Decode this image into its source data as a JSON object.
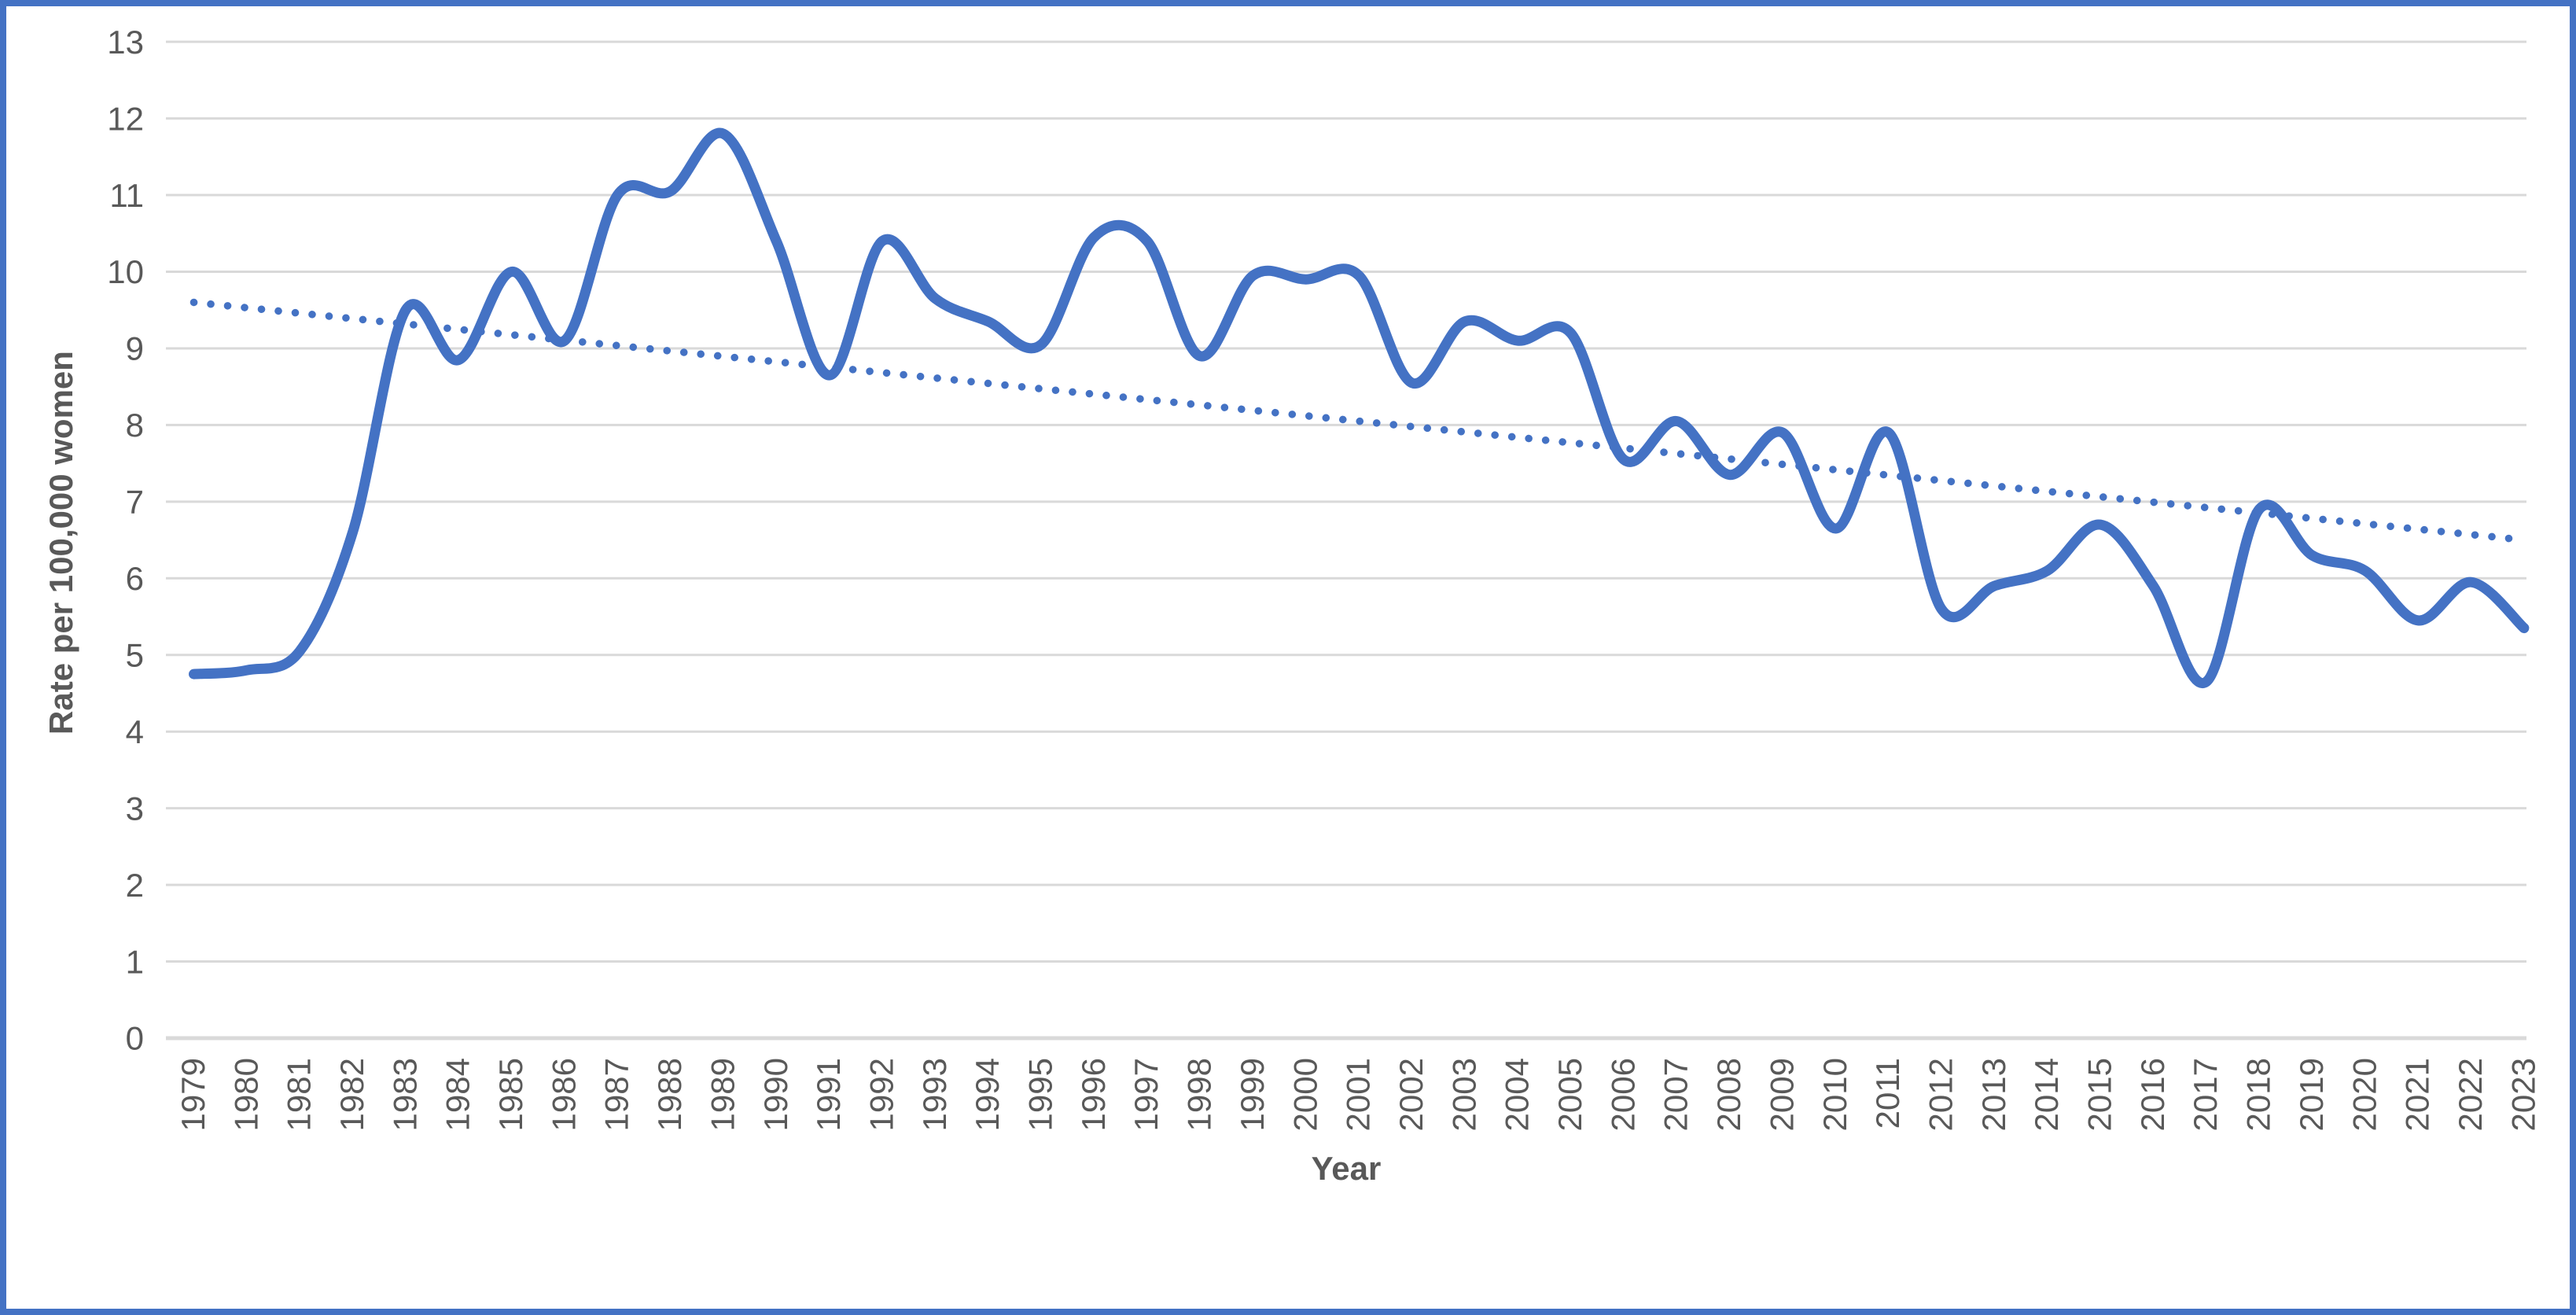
{
  "chart_data": {
    "type": "line",
    "title": "",
    "xlabel": "Year",
    "ylabel": "Rate per 100,000 women",
    "x": [
      1979,
      1980,
      1981,
      1982,
      1983,
      1984,
      1985,
      1986,
      1987,
      1988,
      1989,
      1990,
      1991,
      1992,
      1993,
      1994,
      1995,
      1996,
      1997,
      1998,
      1999,
      2000,
      2001,
      2002,
      2003,
      2004,
      2005,
      2006,
      2007,
      2008,
      2009,
      2010,
      2011,
      2012,
      2013,
      2014,
      2015,
      2016,
      2017,
      2018,
      2019,
      2020,
      2021,
      2022,
      2023
    ],
    "series": [
      {
        "name": "Rate per 100,000 women",
        "style": "smooth-solid",
        "values": [
          4.75,
          4.8,
          5.05,
          6.6,
          9.5,
          8.85,
          10.0,
          9.1,
          11.0,
          11.05,
          11.8,
          10.4,
          8.65,
          10.4,
          9.65,
          9.35,
          9.05,
          10.45,
          10.4,
          8.9,
          9.95,
          9.9,
          9.95,
          8.55,
          9.35,
          9.1,
          9.2,
          7.55,
          8.05,
          7.35,
          7.9,
          6.65,
          7.9,
          5.6,
          5.9,
          6.1,
          6.7,
          5.9,
          4.65,
          6.9,
          6.3,
          6.1,
          5.45,
          5.95,
          5.35
        ]
      }
    ],
    "trendline": {
      "style": "dotted-linear",
      "start_x": 1979,
      "start_value": 9.6,
      "end_x": 2023,
      "end_value": 6.5
    },
    "ylim": [
      0,
      13
    ],
    "yticks": [
      0,
      1,
      2,
      3,
      4,
      5,
      6,
      7,
      8,
      9,
      10,
      11,
      12,
      13
    ],
    "grid": "horizontal",
    "legend": "none",
    "colors": {
      "line": "#4472C4",
      "trendline": "#4472C4",
      "gridline": "#D9D9D9",
      "axis_line": "#D9D9D9",
      "tick_label": "#595959",
      "axis_title": "#595959",
      "frame_border": "#4472C4",
      "background": "#FFFFFF"
    }
  }
}
